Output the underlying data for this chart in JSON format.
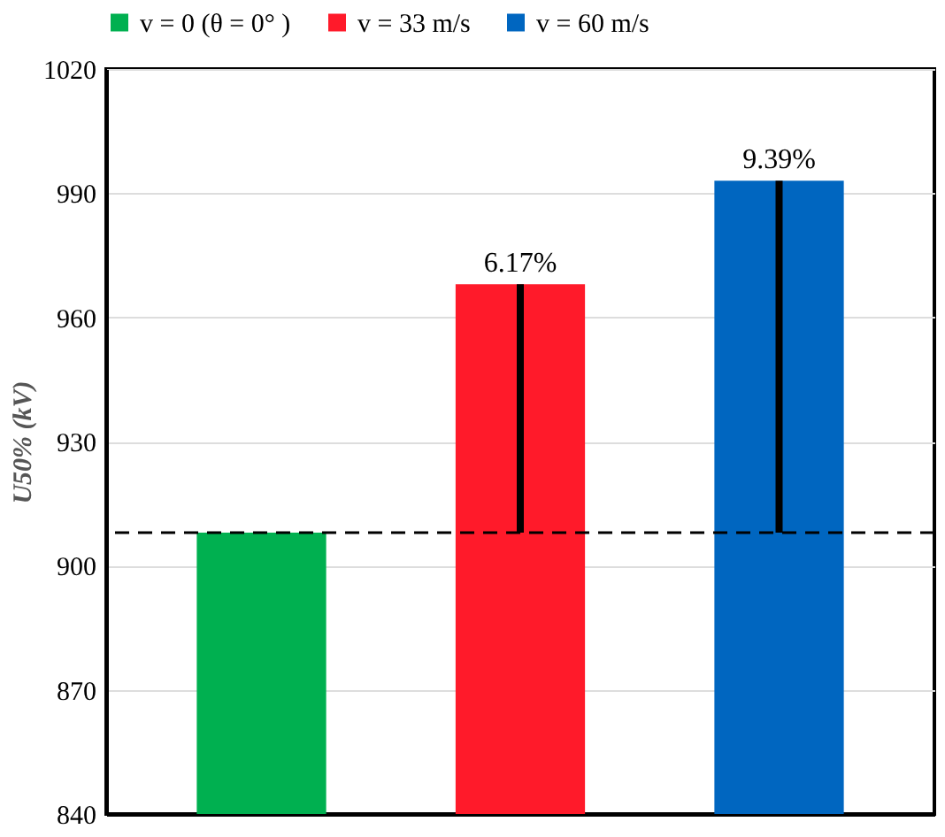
{
  "chart_data": {
    "type": "bar",
    "ylabel": "U50% (kV)",
    "annotations": [
      {
        "text": "6.17%",
        "y": 968
      },
      {
        "text": "9.39%",
        "y": 993
      }
    ],
    "categories": [
      null,
      null,
      null
    ],
    "series": [
      {
        "name": "v = 0 (θ = 0° )",
        "color": "#00b050",
        "values": [
          908,
          null,
          null
        ]
      },
      {
        "name": "v = 33 m/s",
        "color": "#ff1a2a",
        "values": [
          null,
          968,
          null
        ]
      },
      {
        "name": "v = 60 m/s",
        "color": "#0066c0",
        "values": [
          null,
          null,
          993
        ]
      }
    ],
    "ylim": [
      840,
      1020
    ],
    "yticks": [
      840,
      870,
      900,
      930,
      960,
      990,
      1020
    ],
    "ref_lines": [
      {
        "axis": "y",
        "value": 908,
        "color": "#000000",
        "line_style": "dashed"
      }
    ],
    "grid": "y",
    "legend": "top",
    "tick_labels": "y"
  }
}
